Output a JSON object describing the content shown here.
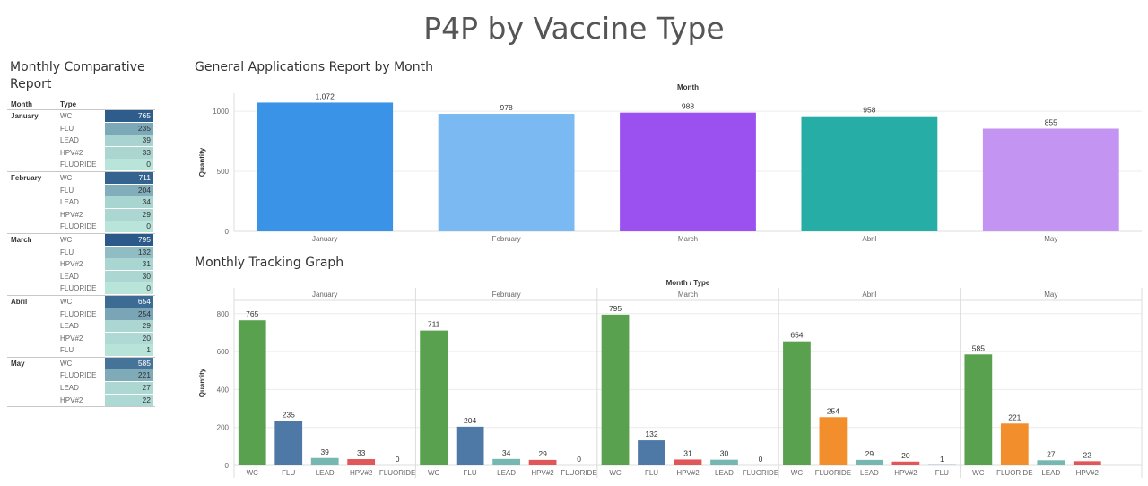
{
  "dashboard": {
    "title": "P4P by Vaccine Type"
  },
  "table": {
    "title": "Monthly Comparative Report",
    "headers": {
      "month": "Month",
      "type": "Type"
    },
    "groups": [
      {
        "month": "January",
        "rows": [
          {
            "type": "WC",
            "value": 765
          },
          {
            "type": "FLU",
            "value": 235
          },
          {
            "type": "LEAD",
            "value": 39
          },
          {
            "type": "HPV#2",
            "value": 33
          },
          {
            "type": "FLUORIDE",
            "value": 0
          }
        ]
      },
      {
        "month": "February",
        "rows": [
          {
            "type": "WC",
            "value": 711
          },
          {
            "type": "FLU",
            "value": 204
          },
          {
            "type": "LEAD",
            "value": 34
          },
          {
            "type": "HPV#2",
            "value": 29
          },
          {
            "type": "FLUORIDE",
            "value": 0
          }
        ]
      },
      {
        "month": "March",
        "rows": [
          {
            "type": "WC",
            "value": 795
          },
          {
            "type": "FLU",
            "value": 132
          },
          {
            "type": "HPV#2",
            "value": 31
          },
          {
            "type": "LEAD",
            "value": 30
          },
          {
            "type": "FLUORIDE",
            "value": 0
          }
        ]
      },
      {
        "month": "Abril",
        "rows": [
          {
            "type": "WC",
            "value": 654
          },
          {
            "type": "FLUORIDE",
            "value": 254
          },
          {
            "type": "LEAD",
            "value": 29
          },
          {
            "type": "HPV#2",
            "value": 20
          },
          {
            "type": "FLU",
            "value": 1
          }
        ]
      },
      {
        "month": "May",
        "rows": [
          {
            "type": "WC",
            "value": 585
          },
          {
            "type": "FLUORIDE",
            "value": 221
          },
          {
            "type": "LEAD",
            "value": 27
          },
          {
            "type": "HPV#2",
            "value": 22
          }
        ]
      }
    ]
  },
  "chart_data": [
    {
      "type": "bar",
      "title": "General Applications Report by Month",
      "top_label": "Month",
      "ylabel": "Quantity",
      "categories": [
        "January",
        "February",
        "March",
        "Abril",
        "May"
      ],
      "values": [
        1072,
        978,
        988,
        958,
        855
      ],
      "value_labels": [
        "1,072",
        "978",
        "988",
        "958",
        "855"
      ],
      "yticks": [
        0,
        500,
        1000
      ],
      "ylim": [
        0,
        1150
      ],
      "colors": [
        "#3b93e8",
        "#7bb9f2",
        "#9b50f0",
        "#26ada5",
        "#c394f2"
      ],
      "grid": true
    },
    {
      "type": "bar",
      "title": "Monthly Tracking Graph",
      "top_label": "Month / Type",
      "ylabel": "Quantity",
      "yticks": [
        0,
        200,
        400,
        600,
        800
      ],
      "ylim": [
        0,
        870
      ],
      "grid": true,
      "type_colors": {
        "WC": "#59a14f",
        "FLU": "#4e79a7",
        "LEAD": "#76b7b2",
        "HPV#2": "#e15759",
        "FLUORIDE": "#f28e2b"
      },
      "panels": [
        {
          "month": "January",
          "categories": [
            "WC",
            "FLU",
            "LEAD",
            "HPV#2",
            "FLUORIDE"
          ],
          "values": [
            765,
            235,
            39,
            33,
            0
          ]
        },
        {
          "month": "February",
          "categories": [
            "WC",
            "FLU",
            "LEAD",
            "HPV#2",
            "FLUORIDE"
          ],
          "values": [
            711,
            204,
            34,
            29,
            0
          ]
        },
        {
          "month": "March",
          "categories": [
            "WC",
            "FLU",
            "HPV#2",
            "LEAD",
            "FLUORIDE"
          ],
          "values": [
            795,
            132,
            31,
            30,
            0
          ]
        },
        {
          "month": "Abril",
          "categories": [
            "WC",
            "FLUORIDE",
            "LEAD",
            "HPV#2",
            "FLU"
          ],
          "values": [
            654,
            254,
            29,
            20,
            1
          ]
        },
        {
          "month": "May",
          "categories": [
            "WC",
            "FLUORIDE",
            "LEAD",
            "HPV#2"
          ],
          "values": [
            585,
            221,
            27,
            22
          ]
        }
      ]
    }
  ]
}
